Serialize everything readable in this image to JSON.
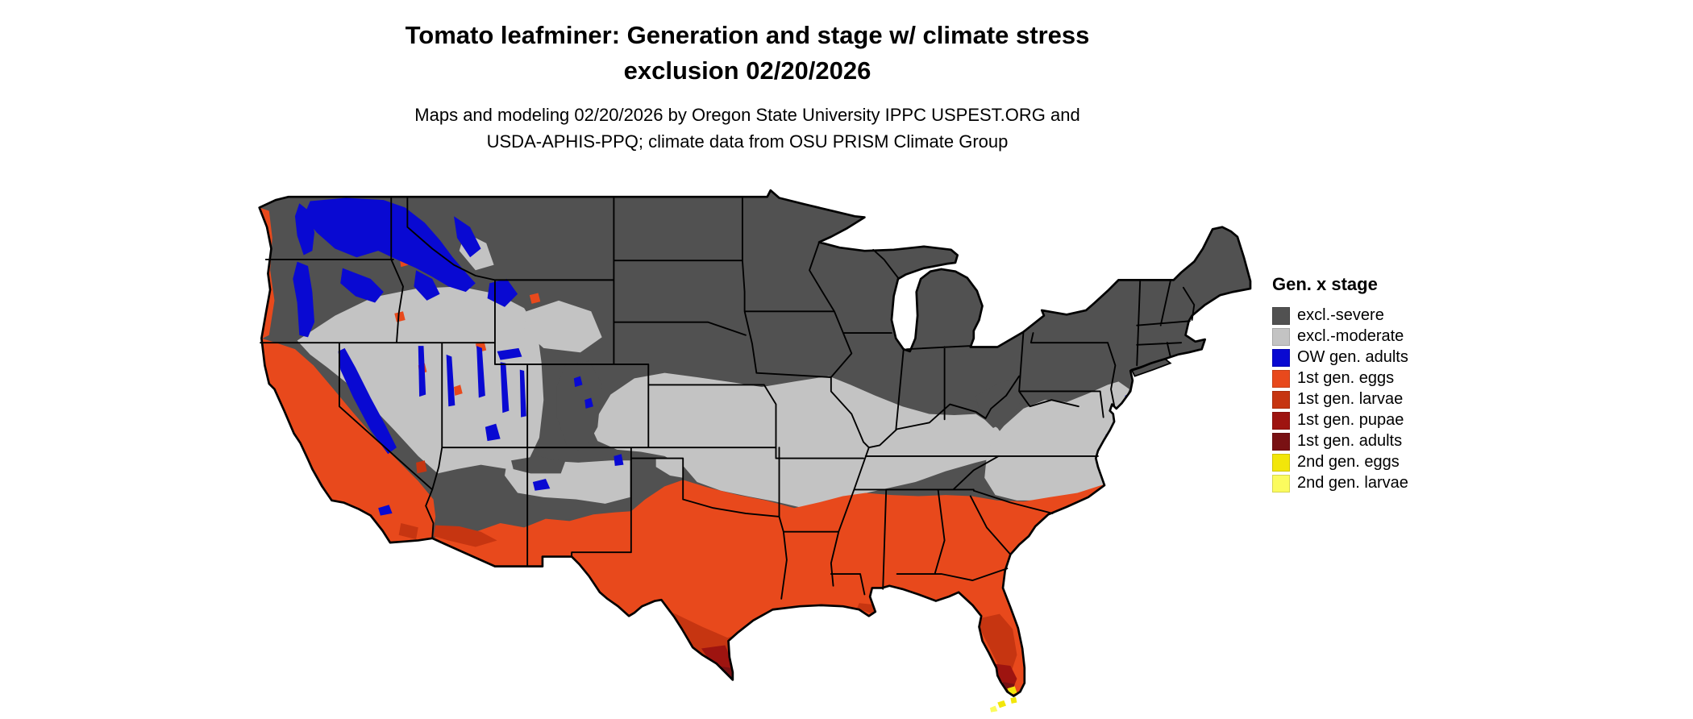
{
  "header": {
    "title_line1": "Tomato leafminer: Generation and stage w/ climate stress",
    "title_line2": "exclusion 02/20/2026",
    "subtitle_line1": "Maps and modeling 02/20/2026 by Oregon State University IPPC USPEST.ORG and",
    "subtitle_line2": "USDA-APHIS-PPQ; climate data from OSU PRISM Climate Group"
  },
  "legend": {
    "title": "Gen. x stage",
    "items": [
      {
        "label": "excl.-severe",
        "color_key": "severe"
      },
      {
        "label": "excl.-moderate",
        "color_key": "moderate"
      },
      {
        "label": "OW gen. adults",
        "color_key": "ow_adults"
      },
      {
        "label": "1st gen. eggs",
        "color_key": "gen1_eggs"
      },
      {
        "label": "1st gen. larvae",
        "color_key": "gen1_larvae"
      },
      {
        "label": "1st gen. pupae",
        "color_key": "gen1_pupae"
      },
      {
        "label": "1st gen. adults",
        "color_key": "gen1_adults"
      },
      {
        "label": "2nd gen. eggs",
        "color_key": "gen2_eggs"
      },
      {
        "label": "2nd gen. larvae",
        "color_key": "gen2_larvae"
      }
    ]
  },
  "colors": {
    "severe": "#515151",
    "moderate": "#c3c3c3",
    "ow_adults": "#0909d2",
    "gen1_eggs": "#e8491c",
    "gen1_larvae": "#c63511",
    "gen1_pupae": "#9e1410",
    "gen1_adults": "#791113",
    "gen2_eggs": "#f2e60a",
    "gen2_larvae": "#fbfb5e",
    "map_outline": "#000000",
    "background": "#ffffff"
  },
  "map": {
    "region_label": "Continental United States"
  }
}
